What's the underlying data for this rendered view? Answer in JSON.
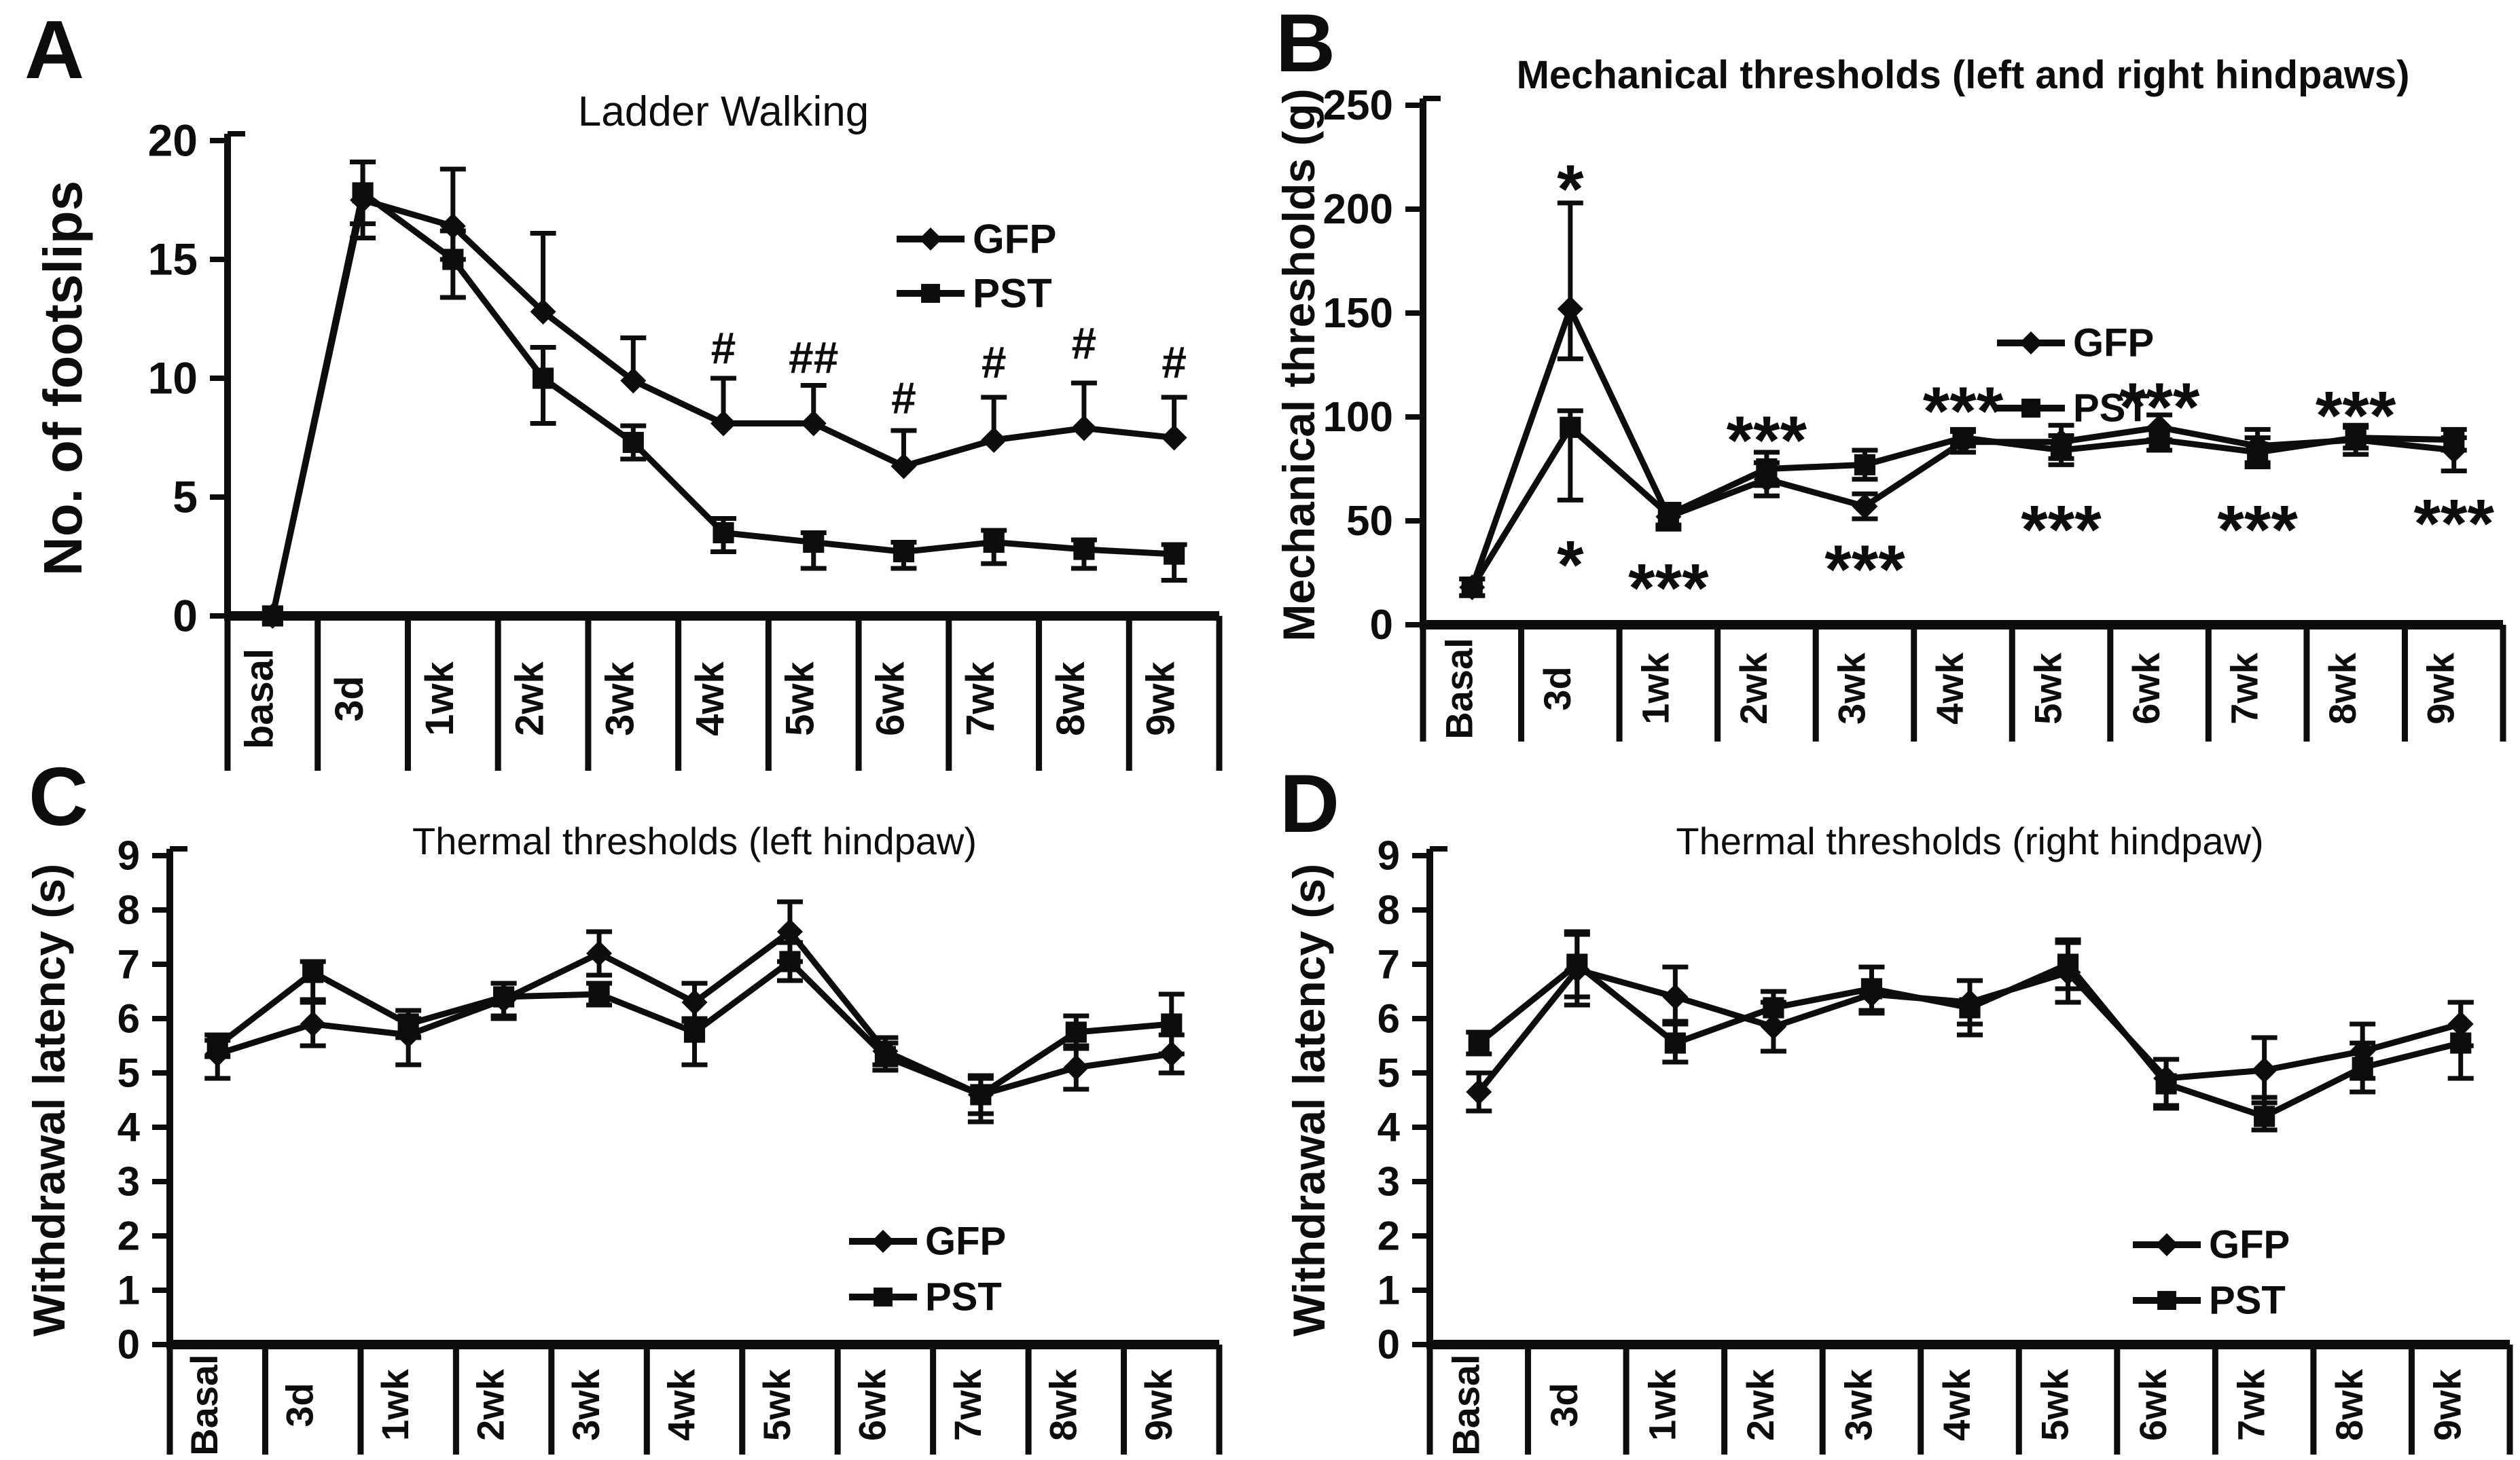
{
  "figure": {
    "background": "#ffffff",
    "ink_color": "#0d0d0d",
    "series_names": [
      "GFP",
      "PST"
    ]
  },
  "chart_data": [
    {
      "type": "line",
      "panel_label": "A",
      "title": "Ladder Walking",
      "ylabel": "No. of footslips",
      "xlabel": "",
      "ylim": [
        0,
        20
      ],
      "yticks": [
        0,
        5,
        10,
        15,
        20
      ],
      "grid": false,
      "categories": [
        "basal",
        "3d",
        "1wk",
        "2wk",
        "3wk",
        "4wk",
        "5wk",
        "6wk",
        "7wk",
        "8wk",
        "9wk"
      ],
      "legend": {
        "position": "top-right",
        "entries": [
          "GFP",
          "PST"
        ]
      },
      "series": [
        {
          "name": "GFP",
          "marker": "diamond",
          "values": [
            0,
            17.5,
            16.4,
            12.8,
            9.9,
            8.1,
            8.1,
            6.3,
            7.4,
            7.9,
            7.5
          ],
          "err_up": [
            0,
            1.6,
            2.4,
            3.3,
            1.8,
            1.9,
            1.6,
            1.5,
            1.8,
            1.9,
            1.7
          ],
          "err_down": [
            0,
            1.6,
            1.4,
            0,
            0,
            0,
            0,
            0,
            0,
            0,
            0
          ]
        },
        {
          "name": "PST",
          "marker": "square",
          "values": [
            0,
            17.8,
            15.0,
            10.0,
            7.3,
            3.5,
            3.1,
            2.7,
            3.1,
            2.8,
            2.6
          ],
          "err_up": [
            0,
            1.3,
            1.2,
            1.3,
            0.7,
            0.6,
            0.4,
            0.4,
            0.5,
            0.4,
            0.4
          ],
          "err_down": [
            0,
            1.3,
            1.6,
            1.9,
            0.7,
            0.8,
            1.1,
            0.7,
            0.9,
            0.8,
            1.1
          ]
        }
      ],
      "annotations": [
        {
          "x": "4wk",
          "y": 11.3,
          "text": "#"
        },
        {
          "x": "5wk",
          "y": 10.9,
          "text": "##"
        },
        {
          "x": "6wk",
          "y": 9.2,
          "text": "#"
        },
        {
          "x": "7wk",
          "y": 10.7,
          "text": "#"
        },
        {
          "x": "8wk",
          "y": 11.5,
          "text": "#"
        },
        {
          "x": "9wk",
          "y": 10.7,
          "text": "#"
        }
      ]
    },
    {
      "type": "line",
      "panel_label": "B",
      "title": "Mechanical thresholds (left and right hindpaws)",
      "ylabel": "Mechanical thresholds (g)",
      "xlabel": "",
      "ylim": [
        0,
        250
      ],
      "yticks": [
        0,
        50,
        100,
        150,
        200,
        250
      ],
      "grid": false,
      "categories": [
        "Basal",
        "3d",
        "1wk",
        "2wk",
        "3wk",
        "4wk",
        "5wk",
        "6wk",
        "7wk",
        "8wk",
        "9wk"
      ],
      "legend": {
        "position": "top-right",
        "entries": [
          "GFP",
          "PST"
        ]
      },
      "series": [
        {
          "name": "GFP",
          "marker": "diamond",
          "values": [
            18,
            152,
            52,
            70,
            57,
            88,
            88,
            95,
            86,
            89,
            84
          ],
          "err_up": [
            4,
            51,
            6,
            8,
            6,
            5,
            8,
            6,
            8,
            7,
            6
          ],
          "err_down": [
            4,
            24,
            6,
            8,
            6,
            5,
            8,
            6,
            8,
            7,
            10
          ]
        },
        {
          "name": "PST",
          "marker": "square",
          "values": [
            18,
            95,
            53,
            75,
            77,
            90,
            84,
            89,
            83,
            90,
            89
          ],
          "err_up": [
            4,
            8,
            5,
            8,
            7,
            4,
            7,
            5,
            7,
            5,
            5
          ],
          "err_down": [
            4,
            35,
            5,
            8,
            7,
            4,
            7,
            5,
            7,
            5,
            5
          ]
        }
      ],
      "annotations": [
        {
          "x": "3d",
          "y": 219,
          "text": "*"
        },
        {
          "x": "3d",
          "y": 38,
          "text": "*"
        },
        {
          "x": "1wk",
          "y": 27,
          "text": "***"
        },
        {
          "x": "2wk",
          "y": 98,
          "text": "***"
        },
        {
          "x": "3wk",
          "y": 36,
          "text": "***"
        },
        {
          "x": "4wk",
          "y": 112,
          "text": "***"
        },
        {
          "x": "5wk",
          "y": 55,
          "text": "***"
        },
        {
          "x": "6wk",
          "y": 114,
          "text": "***"
        },
        {
          "x": "7wk",
          "y": 55,
          "text": "***"
        },
        {
          "x": "8wk",
          "y": 110,
          "text": "***"
        },
        {
          "x": "9wk",
          "y": 58,
          "text": "***"
        }
      ]
    },
    {
      "type": "line",
      "panel_label": "C",
      "title": "Thermal thresholds (left hindpaw)",
      "ylabel": "Withdrawal latency (s)",
      "xlabel": "",
      "ylim": [
        0,
        9
      ],
      "yticks": [
        0,
        1,
        2,
        3,
        4,
        5,
        6,
        7,
        8,
        9
      ],
      "grid": false,
      "categories": [
        "Basal",
        "3d",
        "1wk",
        "2wk",
        "3wk",
        "4wk",
        "5wk",
        "6wk",
        "7wk",
        "8wk",
        "9wk"
      ],
      "legend": {
        "position": "bottom-right",
        "entries": [
          "GFP",
          "PST"
        ]
      },
      "series": [
        {
          "name": "GFP",
          "marker": "diamond",
          "values": [
            5.35,
            5.9,
            5.7,
            6.35,
            7.2,
            6.3,
            7.6,
            5.4,
            4.6,
            5.1,
            5.35
          ],
          "err_up": [
            0.25,
            0.4,
            0.3,
            0.3,
            0.4,
            0.35,
            0.55,
            0.25,
            0.3,
            0.4,
            0.35
          ],
          "err_down": [
            0.45,
            0.4,
            0.55,
            0.3,
            0.4,
            0.35,
            0.55,
            0.25,
            0.5,
            0.4,
            0.35
          ]
        },
        {
          "name": "PST",
          "marker": "square",
          "values": [
            5.5,
            6.85,
            5.9,
            6.4,
            6.45,
            5.75,
            7.05,
            5.3,
            4.6,
            5.75,
            5.9
          ],
          "err_up": [
            0.2,
            0.2,
            0.25,
            0.25,
            0.2,
            0.25,
            0.35,
            0.25,
            0.35,
            0.3,
            0.55
          ],
          "err_down": [
            0.2,
            0.5,
            0.25,
            0.4,
            0.2,
            0.6,
            0.35,
            0.25,
            0.35,
            0.3,
            0.55
          ]
        }
      ],
      "annotations": []
    },
    {
      "type": "line",
      "panel_label": "D",
      "title": "Thermal thresholds (right hindpaw)",
      "ylabel": "Withdrawal latency (s)",
      "xlabel": "",
      "ylim": [
        0,
        9
      ],
      "yticks": [
        0,
        1,
        2,
        3,
        4,
        5,
        6,
        7,
        8,
        9
      ],
      "grid": false,
      "categories": [
        "Basal",
        "3d",
        "1wk",
        "2wk",
        "3wk",
        "4wk",
        "5wk",
        "6wk",
        "7wk",
        "8wk",
        "9wk"
      ],
      "legend": {
        "position": "bottom-right",
        "entries": [
          "GFP",
          "PST"
        ]
      },
      "series": [
        {
          "name": "GFP",
          "marker": "diamond",
          "values": [
            4.65,
            6.9,
            6.4,
            5.85,
            6.45,
            6.3,
            6.85,
            4.9,
            5.05,
            5.4,
            5.9
          ],
          "err_up": [
            0.35,
            0.65,
            0.55,
            0.45,
            0.5,
            0.4,
            0.55,
            0.35,
            0.6,
            0.5,
            0.4
          ],
          "err_down": [
            0.35,
            0.65,
            0.45,
            0.45,
            0.35,
            0.4,
            0.55,
            0.5,
            0.6,
            0.5,
            0.4
          ]
        },
        {
          "name": "PST",
          "marker": "square",
          "values": [
            5.55,
            7.0,
            5.55,
            6.2,
            6.55,
            6.2,
            7.0,
            4.8,
            4.2,
            5.1,
            5.55
          ],
          "err_up": [
            0.2,
            0.6,
            0.35,
            0.3,
            0.4,
            0.5,
            0.45,
            0.45,
            0.35,
            0.45,
            0.75
          ],
          "err_down": [
            0.2,
            0.6,
            0.35,
            0.3,
            0.4,
            0.5,
            0.45,
            0.45,
            0.25,
            0.45,
            0.65
          ]
        }
      ],
      "annotations": []
    }
  ]
}
